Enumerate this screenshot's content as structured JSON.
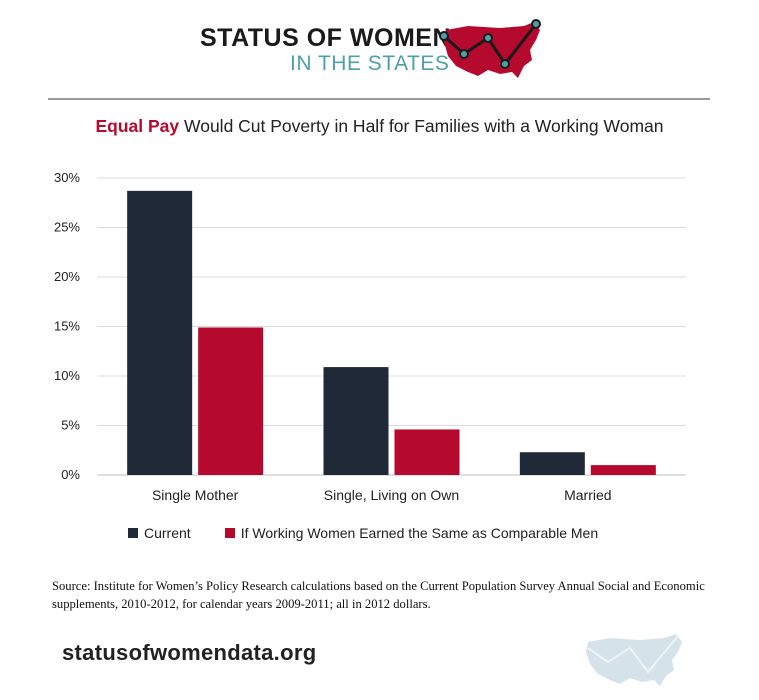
{
  "header": {
    "brand_line1": "STATUS OF WOMEN",
    "brand_line2": "IN THE STATES",
    "logo_icon": "us-map-line-icon"
  },
  "title": {
    "accent": "Equal Pay",
    "rest": " Would Cut Poverty in Half for Families with a Working Woman"
  },
  "colors": {
    "current": "#1f2937",
    "equal_pay": "#b5092e",
    "accent": "#b5092e",
    "teal": "#4ea0a6"
  },
  "chart_data": {
    "type": "bar",
    "title": "Equal Pay Would Cut Poverty in Half for Families with a Working Woman",
    "xlabel": "",
    "ylabel": "",
    "categories": [
      "Single Mother",
      "Single, Living on Own",
      "Married"
    ],
    "series": [
      {
        "name": "Current",
        "values": [
          28.7,
          10.9,
          2.3
        ]
      },
      {
        "name": "If Working Women Earned the Same as Comparable Men",
        "values": [
          14.9,
          4.6,
          1.0
        ]
      }
    ],
    "ylim": [
      0,
      30
    ],
    "yticks": [
      "0%",
      "5%",
      "10%",
      "15%",
      "20%",
      "25%",
      "30%"
    ],
    "grid": true,
    "legend_position": "bottom-left"
  },
  "source": "Source: Institute for Women’s Policy Research calculations based on the Current Population Survey Annual Social and Economic supplements, 2010-2012, for calendar years 2009-2011; all in 2012 dollars.",
  "footer": {
    "website": "statusofwomendata.org",
    "watermark_icon": "us-map-watermark-icon"
  }
}
